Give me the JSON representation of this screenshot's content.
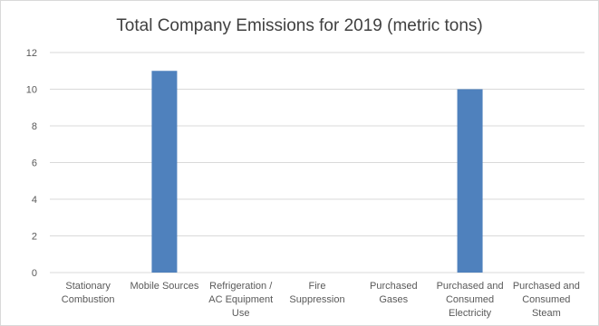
{
  "chart_data": {
    "type": "bar",
    "title": "Total Company Emissions for 2019 (metric tons)",
    "xlabel": "",
    "ylabel": "",
    "categories": [
      "Stationary Combustion",
      "Mobile Sources",
      "Refrigeration / AC Equipment Use",
      "Fire Suppression",
      "Purchased Gases",
      "Purchased and Consumed Electricity",
      "Purchased and Consumed Steam"
    ],
    "values": [
      0,
      11,
      0,
      0,
      0,
      10,
      0
    ],
    "ylim": [
      0,
      12
    ],
    "yticks": [
      "0",
      "2",
      "4",
      "6",
      "8",
      "10",
      "12"
    ],
    "grid": true,
    "legend": "none",
    "colors": {
      "bar": "#4f81bd",
      "grid": "#d9d9d9",
      "text": "#595959",
      "title": "#404040"
    }
  }
}
